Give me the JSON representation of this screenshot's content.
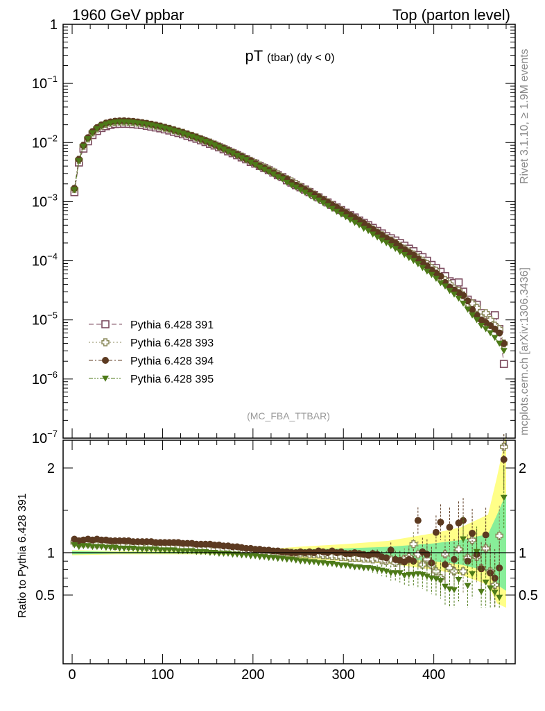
{
  "header": {
    "left": "1960 GeV ppbar",
    "right": "Top (parton level)"
  },
  "plot_title": {
    "main": "pT",
    "sub": "(tbar) (dy < 0)"
  },
  "side_text": {
    "rivet": "Rivet 3.1.10, ≥ 1.9M events",
    "mcplots": "mcplots.cern.ch [arXiv:1306.3436]"
  },
  "analysis_tag": "(MC_FBA_TTBAR)",
  "ratio_ylabel": "Ratio to Pythia 6.428 391",
  "colors": {
    "s391": "#7b4a5e",
    "s393": "#8b8a5c",
    "s394": "#5c3a21",
    "s395": "#4d7a18",
    "band_yellow": "#ffff88",
    "band_green": "#88ee99"
  },
  "chart_data": [
    {
      "type": "scatter",
      "scale": "log",
      "ylim": [
        1e-07,
        1
      ],
      "xlim": [
        -10,
        490
      ],
      "y_ticks": [
        {
          "base": "1",
          "exp": ""
        },
        {
          "base": "10",
          "exp": "−1"
        },
        {
          "base": "10",
          "exp": "−2"
        },
        {
          "base": "10",
          "exp": "−3"
        },
        {
          "base": "10",
          "exp": "−4"
        },
        {
          "base": "10",
          "exp": "−5"
        },
        {
          "base": "10",
          "exp": "−6"
        },
        {
          "base": "10",
          "exp": "−7"
        }
      ],
      "x": [
        2.5,
        7.5,
        12.5,
        17.5,
        22.5,
        27.5,
        32.5,
        37.5,
        42.5,
        47.5,
        52.5,
        57.5,
        62.5,
        67.5,
        72.5,
        77.5,
        82.5,
        87.5,
        92.5,
        97.5,
        102.5,
        107.5,
        112.5,
        117.5,
        122.5,
        127.5,
        132.5,
        137.5,
        142.5,
        147.5,
        152.5,
        157.5,
        162.5,
        167.5,
        172.5,
        177.5,
        182.5,
        187.5,
        192.5,
        197.5,
        202.5,
        207.5,
        212.5,
        217.5,
        222.5,
        227.5,
        232.5,
        237.5,
        242.5,
        247.5,
        252.5,
        257.5,
        262.5,
        267.5,
        272.5,
        277.5,
        282.5,
        287.5,
        292.5,
        297.5,
        302.5,
        307.5,
        312.5,
        317.5,
        322.5,
        327.5,
        332.5,
        337.5,
        342.5,
        347.5,
        352.5,
        357.5,
        362.5,
        367.5,
        372.5,
        377.5,
        382.5,
        387.5,
        392.5,
        397.5,
        402.5,
        407.5,
        412.5,
        417.5,
        422.5,
        427.5,
        432.5,
        437.5,
        442.5,
        447.5,
        452.5,
        457.5,
        462.5,
        467.5,
        472.5,
        477.5
      ],
      "series": [
        {
          "name": "Pythia 6.428 391",
          "marker": "open-square",
          "line": "dash",
          "values": [
            0.00145,
            0.0046,
            0.0079,
            0.0105,
            0.0134,
            0.0157,
            0.0176,
            0.0189,
            0.0199,
            0.0206,
            0.0207,
            0.0208,
            0.0207,
            0.0205,
            0.0201,
            0.0197,
            0.0192,
            0.0186,
            0.018,
            0.0174,
            0.0167,
            0.016,
            0.0152,
            0.0145,
            0.0138,
            0.013,
            0.0123,
            0.0116,
            0.0109,
            0.0102,
            0.0095,
            0.0089,
            0.0083,
            0.0077,
            0.0071,
            0.0066,
            0.0061,
            0.0056,
            0.0052,
            0.0047,
            0.0044,
            0.004,
            0.0037,
            0.0034,
            0.0031,
            0.0028,
            0.0026,
            0.0023,
            0.0021,
            0.0019,
            0.00175,
            0.0016,
            0.00145,
            0.0013,
            0.00118,
            0.00107,
            0.00097,
            0.00088,
            0.0008,
            0.00072,
            0.00065,
            0.00059,
            0.00054,
            0.00048,
            0.00044,
            0.0004,
            0.00036,
            0.00032,
            0.00029,
            0.00026,
            0.00024,
            0.00022,
            0.0002,
            0.00018,
            0.00016,
            0.000145,
            0.000125,
            0.000115,
            0.0001,
            8.5e-05,
            7.5e-05,
            6.5e-05,
            5.5e-05,
            4.5e-05,
            4.2e-05,
            4.3e-05,
            3e-05,
            2.2e-05,
            1.9e-05,
            1.8e-05,
            1.3e-05,
            1.2e-05,
            1.1e-05,
            1.2e-05,
            7e-06,
            1.8e-06
          ]
        },
        {
          "name": "Pythia 6.428 393",
          "marker": "open-cross",
          "line": "dot",
          "values": [
            0.00163,
            0.0051,
            0.0088,
            0.0117,
            0.0148,
            0.0173,
            0.0193,
            0.0207,
            0.0216,
            0.0222,
            0.0226,
            0.0226,
            0.0224,
            0.0221,
            0.0217,
            0.0212,
            0.0206,
            0.02,
            0.0193,
            0.0186,
            0.0178,
            0.0171,
            0.0162,
            0.0154,
            0.0146,
            0.0138,
            0.013,
            0.0122,
            0.0114,
            0.0107,
            0.01,
            0.0093,
            0.0086,
            0.008,
            0.0074,
            0.0068,
            0.0063,
            0.0058,
            0.0053,
            0.0049,
            0.0045,
            0.0041,
            0.0038,
            0.0035,
            0.0032,
            0.0029,
            0.0026,
            0.0024,
            0.0022,
            0.002,
            0.00178,
            0.00162,
            0.00147,
            0.00132,
            0.0012,
            0.00108,
            0.00097,
            0.00088,
            0.00079,
            0.00071,
            0.00064,
            0.00058,
            0.00052,
            0.00047,
            0.00042,
            0.00038,
            0.00034,
            0.0003,
            0.00027,
            0.00024,
            0.00022,
            0.0002,
            0.000175,
            0.00016,
            0.000142,
            0.000128,
            0.000112,
            0.0001,
            8.8e-05,
            7.6e-05,
            6.8e-05,
            5.2e-05,
            4.7e-05,
            4e-05,
            3.4e-05,
            3.1e-05,
            2.6e-05,
            1.9e-05,
            1.9e-05,
            1.6e-05,
            1.1e-05,
            1.3e-05,
            1e-05,
            8e-06,
            7e-06,
            4e-06
          ]
        },
        {
          "name": "Pythia 6.428 394",
          "marker": "filled-circle",
          "line": "dashdot",
          "values": [
            0.00168,
            0.0052,
            0.009,
            0.0121,
            0.0153,
            0.0179,
            0.0199,
            0.0214,
            0.0224,
            0.023,
            0.0232,
            0.0233,
            0.0231,
            0.0228,
            0.0223,
            0.0217,
            0.0211,
            0.0204,
            0.0197,
            0.019,
            0.0181,
            0.0173,
            0.0164,
            0.0156,
            0.0148,
            0.0139,
            0.0131,
            0.0123,
            0.0115,
            0.0107,
            0.01,
            0.0093,
            0.0086,
            0.008,
            0.0074,
            0.0068,
            0.0063,
            0.0058,
            0.0053,
            0.0049,
            0.0044,
            0.004,
            0.0037,
            0.0034,
            0.0031,
            0.0028,
            0.0026,
            0.0024,
            0.0021,
            0.0019,
            0.00176,
            0.0016,
            0.00146,
            0.00132,
            0.0012,
            0.00108,
            0.00098,
            0.00088,
            0.0008,
            0.00072,
            0.00065,
            0.00059,
            0.00053,
            0.00048,
            0.00043,
            0.00038,
            0.00034,
            0.0003,
            0.00027,
            0.00024,
            0.00022,
            0.0002,
            0.000175,
            0.000155,
            0.000138,
            0.000125,
            0.000108,
            9.5e-05,
            8.2e-05,
            7e-05,
            6.2e-05,
            5.5e-05,
            4.3e-05,
            3.6e-05,
            3.2e-05,
            2.9e-05,
            2.6e-05,
            2.1e-05,
            1.5e-05,
            1.2e-05,
            1e-05,
            9e-06,
            8e-06,
            7e-06,
            6e-06,
            4e-06
          ]
        },
        {
          "name": "Pythia 6.428 395",
          "marker": "filled-triangle-down",
          "line": "dashdotdot",
          "values": [
            0.00158,
            0.0049,
            0.0086,
            0.0115,
            0.0145,
            0.017,
            0.019,
            0.0204,
            0.0213,
            0.0219,
            0.0222,
            0.0222,
            0.0221,
            0.0218,
            0.0213,
            0.0208,
            0.0202,
            0.0196,
            0.0189,
            0.0182,
            0.0174,
            0.0166,
            0.0158,
            0.015,
            0.0142,
            0.0134,
            0.0126,
            0.0118,
            0.0111,
            0.0104,
            0.0097,
            0.009,
            0.0083,
            0.0077,
            0.0071,
            0.0066,
            0.006,
            0.0055,
            0.0051,
            0.0046,
            0.0042,
            0.0038,
            0.0035,
            0.0032,
            0.0029,
            0.0026,
            0.0024,
            0.0021,
            0.0019,
            0.00175,
            0.00158,
            0.00143,
            0.00129,
            0.00116,
            0.00105,
            0.00095,
            0.00085,
            0.00076,
            0.00068,
            0.00061,
            0.00055,
            0.00049,
            0.00044,
            0.0004,
            0.00035,
            0.00032,
            0.00028,
            0.00025,
            0.00022,
            0.0002,
            0.000178,
            0.00016,
            0.000142,
            0.000126,
            0.000112,
            0.0001,
            8.8e-05,
            7.6e-05,
            6.6e-05,
            5.8e-05,
            5e-05,
            4.2e-05,
            3.7e-05,
            3.1e-05,
            2.7e-05,
            2.3e-05,
            1.9e-05,
            1.5e-05,
            1.2e-05,
            1e-05,
            8e-06,
            7e-06,
            6e-06,
            5e-06,
            4e-06,
            3e-06
          ]
        }
      ]
    },
    {
      "type": "scatter",
      "role": "ratio",
      "ylabel": "Ratio to Pythia 6.428 391",
      "ylim": [
        0.35,
        2.4
      ],
      "y_ticks": [
        "2",
        "1",
        "0.5"
      ],
      "x_ticks": [
        "0",
        "100",
        "200",
        "300",
        "400"
      ],
      "reference_band_edges": [
        0,
        50,
        100,
        150,
        200,
        250,
        300,
        350,
        400,
        430,
        460,
        470,
        480
      ],
      "band_yellow_low": [
        0.97,
        0.98,
        0.98,
        0.98,
        0.97,
        0.93,
        0.9,
        0.87,
        0.8,
        0.74,
        0.62,
        0.4,
        0.35
      ],
      "band_yellow_high": [
        1.03,
        1.02,
        1.02,
        1.02,
        1.03,
        1.07,
        1.1,
        1.14,
        1.23,
        1.3,
        1.45,
        1.9,
        2.4
      ],
      "band_green_low": [
        0.98,
        0.99,
        0.99,
        0.99,
        0.98,
        0.96,
        0.95,
        0.93,
        0.9,
        0.86,
        0.78,
        0.62,
        0.55
      ],
      "band_green_high": [
        1.02,
        1.01,
        1.01,
        1.01,
        1.02,
        1.04,
        1.05,
        1.07,
        1.11,
        1.15,
        1.22,
        1.45,
        1.7
      ],
      "series": [
        {
          "name": "Pythia 6.428 393",
          "values": [
            1.12,
            1.11,
            1.11,
            1.11,
            1.1,
            1.1,
            1.1,
            1.1,
            1.09,
            1.08,
            1.09,
            1.09,
            1.08,
            1.08,
            1.08,
            1.08,
            1.07,
            1.08,
            1.07,
            1.07,
            1.07,
            1.07,
            1.07,
            1.06,
            1.06,
            1.06,
            1.06,
            1.05,
            1.05,
            1.05,
            1.05,
            1.04,
            1.04,
            1.04,
            1.04,
            1.03,
            1.03,
            1.03,
            1.02,
            1.02,
            1.02,
            1.02,
            1.01,
            1.01,
            1.01,
            1.01,
            1.0,
            1.0,
            1.0,
            0.99,
            0.99,
            0.99,
            0.98,
            0.98,
            0.98,
            0.97,
            0.97,
            0.96,
            0.96,
            0.95,
            0.95,
            0.94,
            0.94,
            0.94,
            0.93,
            0.93,
            0.92,
            0.93,
            0.91,
            0.9,
            0.92,
            0.88,
            0.9,
            0.93,
            0.95,
            1.1,
            0.98,
            0.86,
            0.92,
            0.85,
            0.78,
            0.7,
            0.98,
            0.82,
            0.78,
            1.04,
            0.78,
            0.94,
            1.15,
            0.95,
            0.82,
            1.05,
            0.78,
            0.62,
            1.2,
            2.25
          ]
        },
        {
          "name": "Pythia 6.428 394",
          "values": [
            1.16,
            1.14,
            1.15,
            1.16,
            1.15,
            1.16,
            1.15,
            1.15,
            1.14,
            1.14,
            1.14,
            1.14,
            1.14,
            1.13,
            1.13,
            1.13,
            1.13,
            1.13,
            1.12,
            1.12,
            1.12,
            1.12,
            1.12,
            1.12,
            1.11,
            1.11,
            1.11,
            1.1,
            1.1,
            1.1,
            1.1,
            1.09,
            1.09,
            1.08,
            1.08,
            1.07,
            1.07,
            1.06,
            1.05,
            1.05,
            1.04,
            1.04,
            1.03,
            1.03,
            1.02,
            1.02,
            1.01,
            1.01,
            1.0,
            1.0,
            1.01,
            1.0,
            1.01,
            1.0,
            1.02,
            1.01,
            1.0,
            1.02,
            1.0,
            1.01,
            0.99,
            0.99,
            1.0,
            0.99,
            0.98,
            0.97,
            0.99,
            0.98,
            0.95,
            0.94,
            1.03,
            0.92,
            0.91,
            0.89,
            0.92,
            0.9,
            1.38,
            1.01,
            0.98,
            0.88,
            1.24,
            1.36,
            0.86,
            1.3,
            0.92,
            1.35,
            1.38,
            0.9,
            1.23,
            0.98,
            0.81,
            1.21,
            0.76,
            0.7,
            0.82,
            2.1
          ]
        },
        {
          "name": "Pythia 6.428 395",
          "values": [
            1.09,
            1.07,
            1.08,
            1.08,
            1.07,
            1.07,
            1.07,
            1.06,
            1.06,
            1.06,
            1.05,
            1.05,
            1.05,
            1.05,
            1.04,
            1.04,
            1.04,
            1.04,
            1.04,
            1.03,
            1.03,
            1.03,
            1.03,
            1.02,
            1.02,
            1.02,
            1.02,
            1.01,
            1.01,
            1.01,
            1.0,
            1.0,
            0.99,
            0.99,
            0.99,
            0.98,
            0.98,
            0.97,
            0.97,
            0.96,
            0.96,
            0.95,
            0.95,
            0.94,
            0.94,
            0.93,
            0.93,
            0.92,
            0.92,
            0.91,
            0.9,
            0.9,
            0.89,
            0.89,
            0.88,
            0.88,
            0.87,
            0.87,
            0.86,
            0.85,
            0.85,
            0.84,
            0.83,
            0.83,
            0.82,
            0.82,
            0.81,
            0.8,
            0.79,
            0.78,
            0.76,
            0.76,
            0.76,
            0.73,
            0.74,
            0.74,
            0.75,
            0.74,
            0.72,
            0.7,
            0.69,
            0.67,
            0.6,
            0.57,
            0.56,
            0.68,
            1.16,
            0.61,
            0.75,
            1.01,
            0.54,
            0.65,
            0.58,
            0.53,
            0.47,
            1.65
          ]
        }
      ]
    }
  ]
}
